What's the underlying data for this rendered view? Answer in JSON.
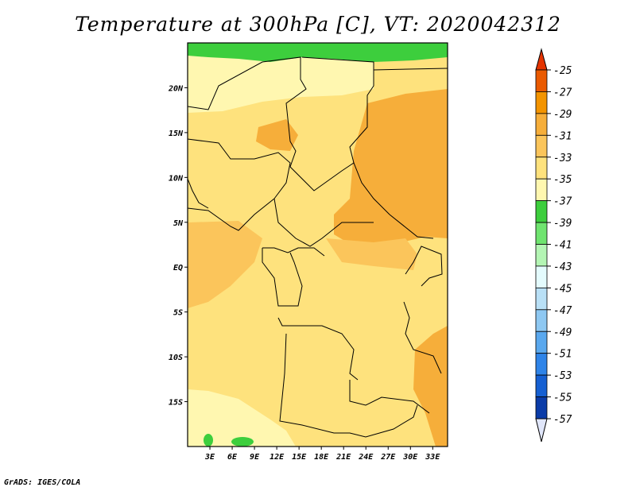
{
  "title": "Temperature at 300hPa [C], VT: 2020042312",
  "credit": "GrADS: IGES/COLA",
  "map": {
    "lon_range": [
      0,
      35
    ],
    "lat_range": [
      -20,
      25
    ],
    "lat_ticks": [
      {
        "value": 20,
        "label": "20N"
      },
      {
        "value": 15,
        "label": "15N"
      },
      {
        "value": 10,
        "label": "10N"
      },
      {
        "value": 5,
        "label": "5N"
      },
      {
        "value": 0,
        "label": "EQ"
      },
      {
        "value": -5,
        "label": "5S"
      },
      {
        "value": -10,
        "label": "10S"
      },
      {
        "value": -15,
        "label": "15S"
      }
    ],
    "lon_ticks": [
      {
        "value": 3,
        "label": "3E"
      },
      {
        "value": 6,
        "label": "6E"
      },
      {
        "value": 9,
        "label": "9E"
      },
      {
        "value": 12,
        "label": "12E"
      },
      {
        "value": 15,
        "label": "15E"
      },
      {
        "value": 18,
        "label": "18E"
      },
      {
        "value": 21,
        "label": "21E"
      },
      {
        "value": 24,
        "label": "24E"
      },
      {
        "value": 27,
        "label": "27E"
      },
      {
        "value": 30,
        "label": "30E"
      },
      {
        "value": 33,
        "label": "33E"
      }
    ]
  },
  "colorbar": {
    "levels": [
      {
        "label": "-25",
        "color": "#ea5a00"
      },
      {
        "label": "-27",
        "color": "#f39400"
      },
      {
        "label": "-29",
        "color": "#f6ae3a"
      },
      {
        "label": "-31",
        "color": "#fbc55b"
      },
      {
        "label": "-33",
        "color": "#fee27d"
      },
      {
        "label": "-35",
        "color": "#fff7b0"
      },
      {
        "label": "-37",
        "color": "#3dce3d"
      },
      {
        "label": "-39",
        "color": "#6fe46f"
      },
      {
        "label": "-41",
        "color": "#b4f5b4"
      },
      {
        "label": "-43",
        "color": "#e4fbfd"
      },
      {
        "label": "-45",
        "color": "#b9e0f6"
      },
      {
        "label": "-47",
        "color": "#8ec8f2"
      },
      {
        "label": "-49",
        "color": "#5aa8ee"
      },
      {
        "label": "-51",
        "color": "#2f84e8"
      },
      {
        "label": "-53",
        "color": "#1660d2"
      },
      {
        "label": "-55",
        "color": "#0b3ca8"
      },
      {
        "label": "-57",
        "color": "#0a1f6e"
      }
    ],
    "top_color": "#e43400",
    "bottom_color": "#e0e6fa"
  }
}
